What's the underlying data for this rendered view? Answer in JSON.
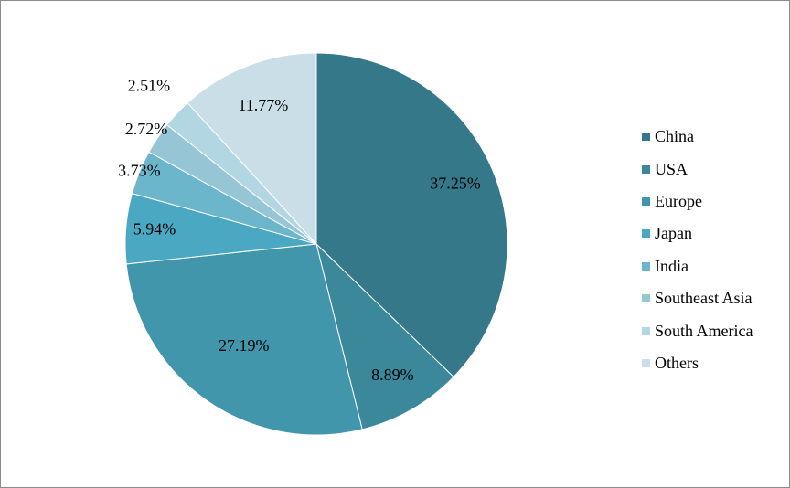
{
  "chart_data": {
    "type": "pie",
    "categories": [
      "China",
      "USA",
      "Europe",
      "Japan",
      "India",
      "Southeast Asia",
      "South America",
      "Others"
    ],
    "values": [
      37.25,
      8.89,
      27.19,
      5.94,
      3.73,
      2.72,
      2.51,
      11.77
    ],
    "labels": [
      "37.25%",
      "8.89%",
      "27.19%",
      "5.94%",
      "3.73%",
      "2.72%",
      "2.51%",
      "11.77%"
    ],
    "colors": [
      "#34788a",
      "#3b889b",
      "#4196ac",
      "#4aa8c2",
      "#6cb6cc",
      "#96c6d6",
      "#b2d6e2",
      "#c9dee6"
    ],
    "legend_position": "right",
    "start_angle": "12 o'clock, clockwise"
  }
}
